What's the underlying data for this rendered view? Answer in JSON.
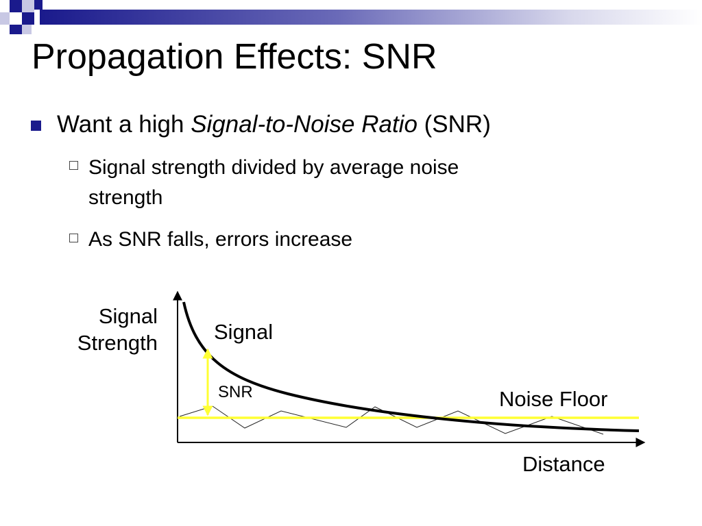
{
  "slide": {
    "title": "Propagation Effects: SNR",
    "bullet_main": {
      "prefix": "Want a high ",
      "emphasis": "Signal-to-Noise Ratio",
      "suffix": " (SNR)"
    },
    "sub_bullets": [
      {
        "line1": "Signal strength divided by average noise",
        "line2": "strength"
      },
      {
        "line1": "As SNR falls, errors increase"
      }
    ],
    "accent_color": "#1a1a8c"
  },
  "diagram": {
    "y_axis_label_line1": "Signal",
    "y_axis_label_line2": "Strength",
    "x_axis_label": "Distance",
    "signal_label": "Signal",
    "snr_label": "SNR",
    "noise_floor_label": "Noise Floor",
    "signal_color": "#000000",
    "noise_floor_color": "#ffff33",
    "snr_arrow_color": "#ffff33"
  }
}
